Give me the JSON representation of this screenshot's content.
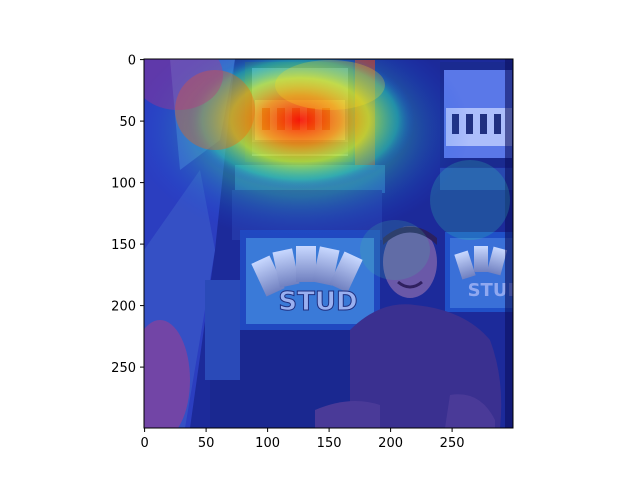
{
  "figure": {
    "type": "image-with-heatmap-overlay",
    "colormap": "jet",
    "image_description_icon": "casino-photo",
    "x_axis": {
      "ticks": [
        0,
        50,
        100,
        150,
        200,
        250
      ],
      "range": [
        0,
        300
      ]
    },
    "y_axis": {
      "ticks": [
        0,
        50,
        100,
        150,
        200,
        250
      ],
      "range": [
        0,
        300
      ],
      "inverted": true
    }
  },
  "scene": {
    "slot_top_left_label": "",
    "slot_bottom_label": "STUD",
    "slot_right_label": "STUD"
  }
}
